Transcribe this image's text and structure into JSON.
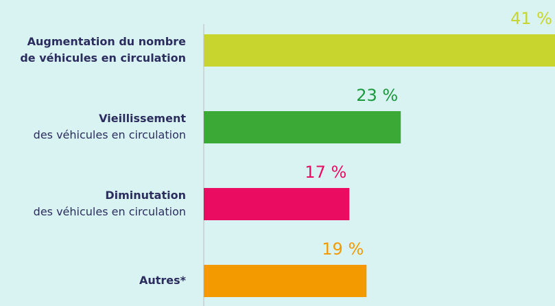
{
  "chart_data": {
    "type": "barh",
    "categories": [
      [
        "Augmentation du nombre",
        "de véhicules en circulation"
      ],
      [
        "Vieillissement",
        "des véhicules en circulation"
      ],
      [
        "Diminutation",
        "des véhicules en circulation"
      ],
      [
        "Autres*"
      ]
    ],
    "values": [
      41,
      23,
      17,
      19
    ],
    "value_labels": [
      "41 %",
      "23 %",
      "17 %",
      "19 %"
    ],
    "colors": [
      "#c8d52f",
      "#3aa935",
      "#e90c61",
      "#f39a00"
    ],
    "label_colors": [
      "#c8d52f",
      "#1a9a3c",
      "#e90c61",
      "#f39a00"
    ],
    "xlim": [
      0,
      41
    ]
  }
}
